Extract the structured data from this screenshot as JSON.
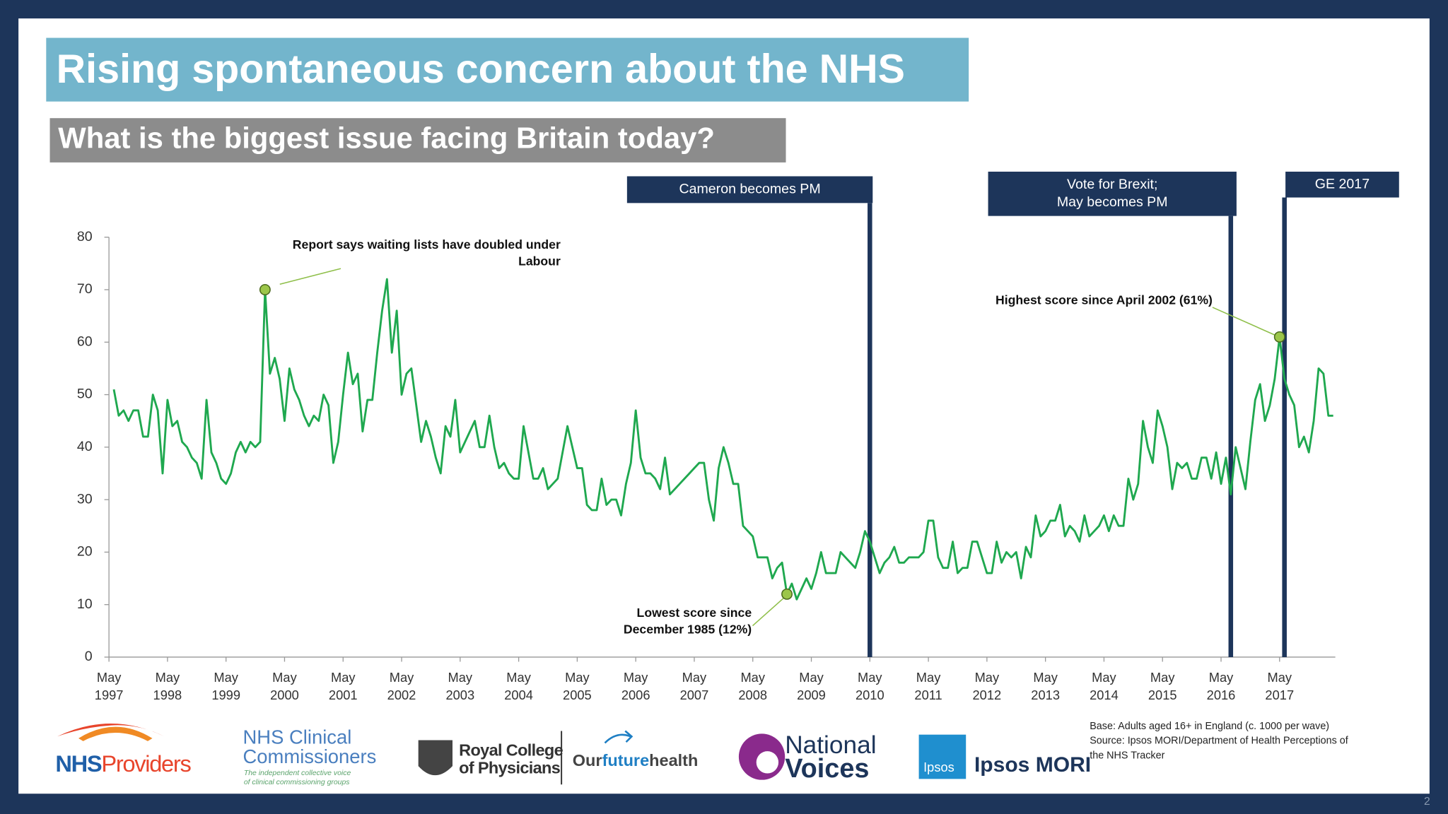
{
  "chart_data": {
    "type": "line",
    "title": "Rising spontaneous concern about the NHS",
    "subtitle": "What is the biggest issue facing Britain today?",
    "color": "#1fa84f",
    "x": [
      "1997-06",
      "1997-07",
      "1997-08",
      "1997-09",
      "1997-10",
      "1997-11",
      "1997-12",
      "1998-01",
      "1998-02",
      "1998-03",
      "1998-04",
      "1998-05",
      "1998-06",
      "1998-07",
      "1998-08",
      "1998-09",
      "1998-10",
      "1998-11",
      "1998-12",
      "1999-01",
      "1999-02",
      "1999-03",
      "1999-04",
      "1999-05",
      "1999-06",
      "1999-07",
      "1999-08",
      "1999-09",
      "1999-10",
      "1999-11",
      "1999-12",
      "2000-01",
      "2000-02",
      "2000-03",
      "2000-04",
      "2000-05",
      "2000-06",
      "2000-07",
      "2000-08",
      "2000-09",
      "2000-10",
      "2000-11",
      "2000-12",
      "2001-01",
      "2001-02",
      "2001-03",
      "2001-04",
      "2001-05",
      "2001-06",
      "2001-07",
      "2001-08",
      "2001-09",
      "2001-10",
      "2001-11",
      "2001-12",
      "2002-01",
      "2002-02",
      "2002-03",
      "2002-04",
      "2002-05",
      "2002-06",
      "2002-07",
      "2002-08",
      "2002-09",
      "2002-10",
      "2002-11",
      "2002-12",
      "2003-01",
      "2003-02",
      "2003-03",
      "2003-04",
      "2003-05",
      "2003-06",
      "2003-07",
      "2003-08",
      "2003-09",
      "2003-10",
      "2003-11",
      "2003-12",
      "2004-01",
      "2004-02",
      "2004-03",
      "2004-04",
      "2004-05",
      "2004-06",
      "2004-07",
      "2004-08",
      "2004-09",
      "2004-10",
      "2004-11",
      "2004-12",
      "2005-01",
      "2005-02",
      "2005-03",
      "2005-04",
      "2005-05",
      "2005-06",
      "2005-07",
      "2005-08",
      "2005-09",
      "2005-10",
      "2005-11",
      "2005-12",
      "2006-01",
      "2006-02",
      "2006-03",
      "2006-04",
      "2006-05",
      "2006-06",
      "2006-07",
      "2006-08",
      "2006-09",
      "2006-10",
      "2006-11",
      "2006-12",
      "2007-01",
      "2007-02",
      "2007-03",
      "2007-04",
      "2007-05",
      "2007-06",
      "2007-07",
      "2007-08",
      "2007-09",
      "2007-10",
      "2007-11",
      "2007-12",
      "2008-01",
      "2008-02",
      "2008-03",
      "2008-04",
      "2008-05",
      "2008-06",
      "2008-07",
      "2008-08",
      "2008-09",
      "2008-10",
      "2008-11",
      "2008-12",
      "2009-01",
      "2009-02",
      "2009-03",
      "2009-04",
      "2009-05",
      "2009-06",
      "2009-07",
      "2009-08",
      "2009-09",
      "2009-10",
      "2009-11",
      "2009-12",
      "2010-01",
      "2010-02",
      "2010-03",
      "2010-04",
      "2010-05",
      "2010-06",
      "2010-07",
      "2010-08",
      "2010-09",
      "2010-10",
      "2010-11",
      "2010-12",
      "2011-01",
      "2011-02",
      "2011-03",
      "2011-04",
      "2011-05",
      "2011-06",
      "2011-07",
      "2011-08",
      "2011-09",
      "2011-10",
      "2011-11",
      "2011-12",
      "2012-01",
      "2012-02",
      "2012-03",
      "2012-04",
      "2012-05",
      "2012-06",
      "2012-07",
      "2012-08",
      "2012-09",
      "2012-10",
      "2012-11",
      "2012-12",
      "2013-01",
      "2013-02",
      "2013-03",
      "2013-04",
      "2013-05",
      "2013-06",
      "2013-07",
      "2013-08",
      "2013-09",
      "2013-10",
      "2013-11",
      "2013-12",
      "2014-01",
      "2014-02",
      "2014-03",
      "2014-04",
      "2014-05",
      "2014-06",
      "2014-07",
      "2014-08",
      "2014-09",
      "2014-10",
      "2014-11",
      "2014-12",
      "2015-01",
      "2015-02",
      "2015-03",
      "2015-04",
      "2015-05",
      "2015-06",
      "2015-07",
      "2015-08",
      "2015-09",
      "2015-10",
      "2015-11",
      "2015-12",
      "2016-01",
      "2016-02",
      "2016-03",
      "2016-04",
      "2016-05",
      "2016-06",
      "2016-07",
      "2016-08",
      "2016-09",
      "2016-10",
      "2016-11",
      "2016-12",
      "2017-01",
      "2017-02",
      "2017-03",
      "2017-04",
      "2017-05",
      "2017-06",
      "2017-07",
      "2017-08",
      "2017-09",
      "2017-10",
      "2017-11",
      "2017-12",
      "2018-01",
      "2018-02",
      "2018-03",
      "2018-04"
    ],
    "values": [
      51,
      46,
      47,
      45,
      47,
      47,
      42,
      42,
      50,
      47,
      35,
      49,
      44,
      45,
      41,
      40,
      38,
      37,
      34,
      49,
      39,
      37,
      34,
      33,
      35,
      39,
      41,
      39,
      41,
      40,
      41,
      70,
      54,
      57,
      53,
      45,
      55,
      51,
      49,
      46,
      44,
      46,
      45,
      50,
      48,
      37,
      41,
      50,
      58,
      52,
      54,
      43,
      49,
      49,
      58,
      66,
      72,
      58,
      66,
      50,
      54,
      55,
      48,
      41,
      45,
      42,
      38,
      35,
      44,
      42,
      49,
      39,
      41,
      43,
      45,
      40,
      40,
      46,
      40,
      36,
      37,
      35,
      34,
      34,
      44,
      39,
      34,
      34,
      36,
      32,
      33,
      34,
      39,
      44,
      40,
      36,
      36,
      29,
      28,
      28,
      34,
      29,
      30,
      30,
      27,
      33,
      37,
      47,
      38,
      35,
      35,
      34,
      32,
      38,
      31,
      32,
      33,
      34,
      35,
      36,
      37,
      37,
      30,
      26,
      36,
      40,
      37,
      33,
      33,
      25,
      24,
      23,
      19,
      19,
      19,
      15,
      17,
      18,
      12,
      14,
      11,
      13,
      15,
      13,
      16,
      20,
      16,
      16,
      16,
      20,
      19,
      18,
      17,
      20,
      24,
      22,
      19,
      16,
      18,
      19,
      21,
      18,
      18,
      19,
      19,
      19,
      20,
      26,
      26,
      19,
      17,
      17,
      22,
      16,
      17,
      17,
      22,
      22,
      19,
      16,
      16,
      22,
      18,
      20,
      19,
      20,
      15,
      21,
      19,
      27,
      23,
      24,
      26,
      26,
      29,
      23,
      25,
      24,
      22,
      27,
      23,
      24,
      25,
      27,
      24,
      27,
      25,
      25,
      34,
      30,
      33,
      45,
      40,
      37,
      47,
      44,
      40,
      32,
      37,
      36,
      37,
      34,
      34,
      38,
      38,
      34,
      39,
      33,
      38,
      31,
      40,
      36,
      32,
      41,
      49,
      52,
      45,
      48,
      53,
      61,
      53,
      50,
      48,
      40,
      42,
      39,
      45,
      55,
      54,
      46,
      46
    ],
    "xlim": [
      "1997-05",
      "2018-05"
    ],
    "xticks": [
      {
        "value": "1997-05",
        "label": "May 1997"
      },
      {
        "value": "1998-05",
        "label": "May 1998"
      },
      {
        "value": "1999-05",
        "label": "May 1999"
      },
      {
        "value": "2000-05",
        "label": "May 2000"
      },
      {
        "value": "2001-05",
        "label": "May 2001"
      },
      {
        "value": "2002-05",
        "label": "May 2002"
      },
      {
        "value": "2003-05",
        "label": "May 2003"
      },
      {
        "value": "2004-05",
        "label": "May 2004"
      },
      {
        "value": "2005-05",
        "label": "May 2005"
      },
      {
        "value": "2006-05",
        "label": "May 2006"
      },
      {
        "value": "2007-05",
        "label": "May 2007"
      },
      {
        "value": "2008-05",
        "label": "May 2008"
      },
      {
        "value": "2009-05",
        "label": "May 2009"
      },
      {
        "value": "2010-05",
        "label": "May 2010"
      },
      {
        "value": "2011-05",
        "label": "May 2011"
      },
      {
        "value": "2012-05",
        "label": "May 2012"
      },
      {
        "value": "2013-05",
        "label": "May 2013"
      },
      {
        "value": "2014-05",
        "label": "May 2014"
      },
      {
        "value": "2015-05",
        "label": "May 2015"
      },
      {
        "value": "2016-05",
        "label": "May 2016"
      },
      {
        "value": "2017-05",
        "label": "May 2017"
      }
    ],
    "ylim": [
      0,
      80
    ],
    "yticks": [
      0,
      10,
      20,
      30,
      40,
      50,
      60,
      70,
      80
    ],
    "grid": false,
    "events": [
      {
        "x": "2010-05",
        "lines": [
          "Cameron becomes PM"
        ]
      },
      {
        "x": "2016-07",
        "lines": [
          "Vote for Brexit;",
          "May becomes PM"
        ]
      },
      {
        "x": "2017-06",
        "lines": [
          "GE 2017"
        ]
      }
    ],
    "annotations": [
      {
        "x": "2000-01",
        "lines": [
          "Report says waiting lists have doubled under",
          "Labour"
        ]
      },
      {
        "x": "2008-12",
        "lines": [
          "Lowest score since",
          "December 1985 (12%)"
        ]
      },
      {
        "x": "2017-05",
        "lines": [
          "Highest score since April 2002 (61%)"
        ]
      }
    ]
  },
  "footer": {
    "nhs_providers": {
      "nhs": "NHS",
      "providers": "Providers"
    },
    "nhs_cc": {
      "line1": "NHS Clinical",
      "line2": "Commissioners",
      "tag1": "The independent collective voice",
      "tag2": "of clinical commissioning groups"
    },
    "rcp": {
      "line1": "Royal College",
      "line2": "of Physicians"
    },
    "ofh": {
      "our": "Our",
      "future": "future",
      "health": "health"
    },
    "nv": {
      "line1": "National",
      "line2": "Voices"
    },
    "ipsos": {
      "badge": "Ipsos",
      "name": "Ipsos MORI"
    },
    "notes": [
      "Base: Adults aged 16+ in England (c. 1000 per wave)",
      "Source: Ipsos MORI/Department of Health Perceptions of",
      "the NHS Tracker"
    ],
    "page": "2"
  }
}
